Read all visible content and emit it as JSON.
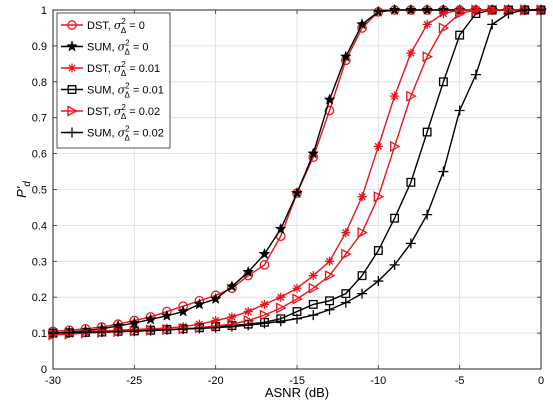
{
  "chart_data": {
    "type": "line",
    "title": "",
    "xlabel": "ASNR (dB)",
    "ylabel_main": "P'",
    "ylabel_sub": "d",
    "xlim": [
      -30,
      0
    ],
    "ylim": [
      0,
      1
    ],
    "xticks": [
      "-30",
      "-25",
      "-20",
      "-15",
      "-10",
      "-5",
      "0"
    ],
    "yticks": [
      "0",
      "0.1",
      "0.2",
      "0.3",
      "0.4",
      "0.5",
      "0.6",
      "0.7",
      "0.8",
      "0.9",
      "1"
    ],
    "grid": true,
    "legend_position": "top-left",
    "x": [
      -30,
      -29,
      -28,
      -27,
      -26,
      -25,
      -24,
      -23,
      -22,
      -21,
      -20,
      -19,
      -18,
      -17,
      -16,
      -15,
      -14,
      -13,
      -12,
      -11,
      -10,
      -9,
      -8,
      -7,
      -6,
      -5,
      -4,
      -3,
      -2,
      -1,
      0
    ],
    "series": [
      {
        "name": "DST, σ²Δ = 0",
        "label_main": "DST, ",
        "label_value": " = 0",
        "color": "#e8141c",
        "marker": "circle",
        "values": [
          0.105,
          0.108,
          0.112,
          0.117,
          0.125,
          0.135,
          0.145,
          0.16,
          0.175,
          0.19,
          0.205,
          0.225,
          0.26,
          0.29,
          0.37,
          0.49,
          0.59,
          0.72,
          0.86,
          0.95,
          0.995,
          1.0,
          1.0,
          1.0,
          1.0,
          1.0,
          1.0,
          1.0,
          1.0,
          1.0,
          1.0
        ]
      },
      {
        "name": "SUM, σ²Δ = 0",
        "label_main": "SUM, ",
        "label_value": " = 0",
        "color": "#000000",
        "marker": "star",
        "values": [
          0.1,
          0.103,
          0.107,
          0.112,
          0.12,
          0.128,
          0.138,
          0.148,
          0.16,
          0.18,
          0.195,
          0.23,
          0.27,
          0.32,
          0.39,
          0.49,
          0.6,
          0.75,
          0.87,
          0.96,
          0.995,
          1.0,
          1.0,
          1.0,
          1.0,
          1.0,
          1.0,
          1.0,
          1.0,
          1.0,
          1.0
        ]
      },
      {
        "name": "DST, σ²Δ = 0.01",
        "label_main": "DST, ",
        "label_value": " = 0.01",
        "color": "#e8141c",
        "marker": "asterisk",
        "values": [
          0.1,
          0.102,
          0.104,
          0.106,
          0.108,
          0.11,
          0.112,
          0.114,
          0.118,
          0.125,
          0.135,
          0.145,
          0.16,
          0.18,
          0.2,
          0.225,
          0.26,
          0.3,
          0.38,
          0.48,
          0.62,
          0.76,
          0.88,
          0.96,
          0.99,
          1.0,
          1.0,
          1.0,
          1.0,
          1.0,
          1.0
        ]
      },
      {
        "name": "SUM, σ²Δ = 0.01",
        "label_main": "SUM, ",
        "label_value": " = 0.01",
        "color": "#000000",
        "marker": "square",
        "values": [
          0.1,
          0.101,
          0.102,
          0.103,
          0.105,
          0.106,
          0.108,
          0.11,
          0.112,
          0.115,
          0.118,
          0.121,
          0.125,
          0.13,
          0.14,
          0.16,
          0.18,
          0.19,
          0.21,
          0.26,
          0.33,
          0.42,
          0.52,
          0.66,
          0.8,
          0.93,
          0.99,
          1.0,
          1.0,
          1.0,
          1.0
        ]
      },
      {
        "name": "DST, σ²Δ = 0.02",
        "label_main": "DST, ",
        "label_value": " = 0.02",
        "color": "#e8141c",
        "marker": "triangle-right",
        "values": [
          0.095,
          0.097,
          0.1,
          0.102,
          0.104,
          0.106,
          0.108,
          0.11,
          0.112,
          0.115,
          0.12,
          0.125,
          0.135,
          0.15,
          0.17,
          0.195,
          0.225,
          0.26,
          0.32,
          0.38,
          0.48,
          0.62,
          0.76,
          0.87,
          0.95,
          0.99,
          1.0,
          1.0,
          1.0,
          1.0,
          1.0
        ]
      },
      {
        "name": "SUM, σ²Δ = 0.02",
        "label_main": "SUM, ",
        "label_value": " = 0.02",
        "color": "#000000",
        "marker": "plus",
        "values": [
          0.1,
          0.101,
          0.102,
          0.103,
          0.104,
          0.105,
          0.107,
          0.109,
          0.111,
          0.113,
          0.115,
          0.118,
          0.122,
          0.127,
          0.133,
          0.14,
          0.15,
          0.165,
          0.185,
          0.21,
          0.245,
          0.29,
          0.35,
          0.43,
          0.55,
          0.72,
          0.82,
          0.96,
          0.99,
          1.0,
          1.0
        ]
      }
    ],
    "legend_symbol": "σ",
    "legend_sup": "2",
    "legend_sub": "Δ"
  }
}
